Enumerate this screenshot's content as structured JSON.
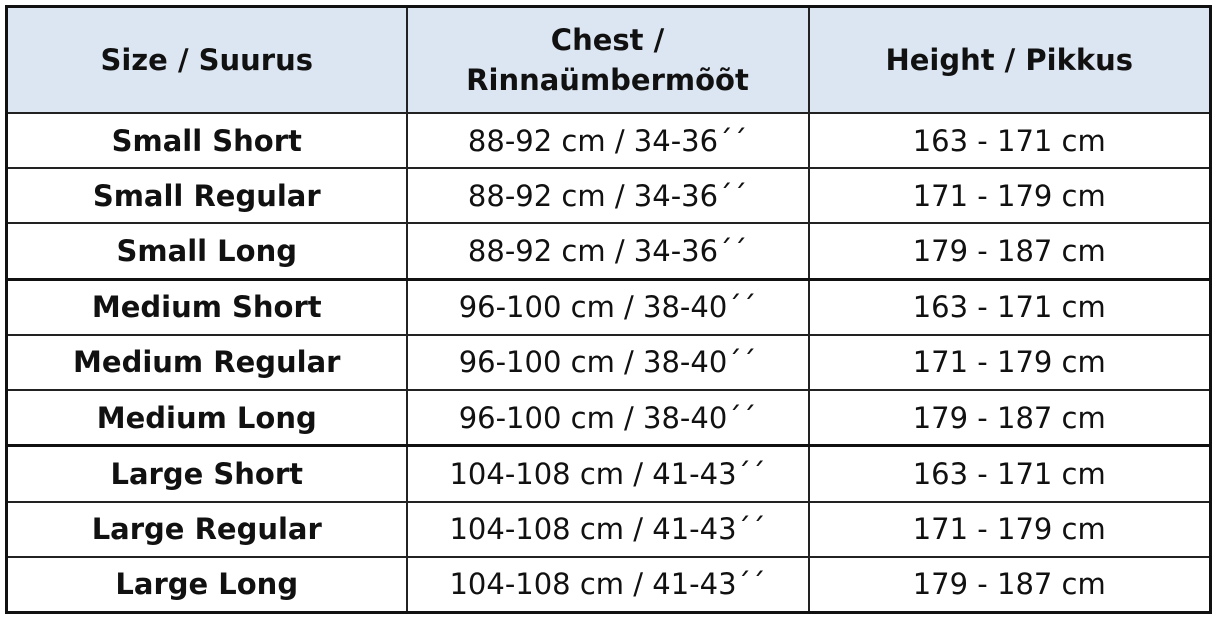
{
  "table": {
    "header": [
      "Size / Suurus",
      "Chest / Rinnaümbermõõt",
      "Height / Pikkus"
    ],
    "rows": [
      [
        "Small Short",
        "88-92 cm / 34-36´´",
        "163 - 171 cm"
      ],
      [
        "Small Regular",
        "88-92 cm / 34-36´´",
        "171 - 179 cm"
      ],
      [
        "Small Long",
        "88-92 cm / 34-36´´",
        "179 - 187 cm"
      ],
      [
        "Medium Short",
        "96-100 cm / 38-40´´",
        "163 - 171 cm"
      ],
      [
        "Medium Regular",
        "96-100 cm / 38-40´´",
        "171 - 179 cm"
      ],
      [
        "Medium Long",
        "96-100 cm / 38-40´´",
        "179 - 187 cm"
      ],
      [
        "Large Short",
        "104-108 cm / 41-43´´",
        "163 - 171 cm"
      ],
      [
        "Large Regular",
        "104-108 cm / 41-43´´",
        "171 - 179 cm"
      ],
      [
        "Large Long",
        "104-108 cm / 41-43´´",
        "179 - 187 cm"
      ]
    ]
  }
}
